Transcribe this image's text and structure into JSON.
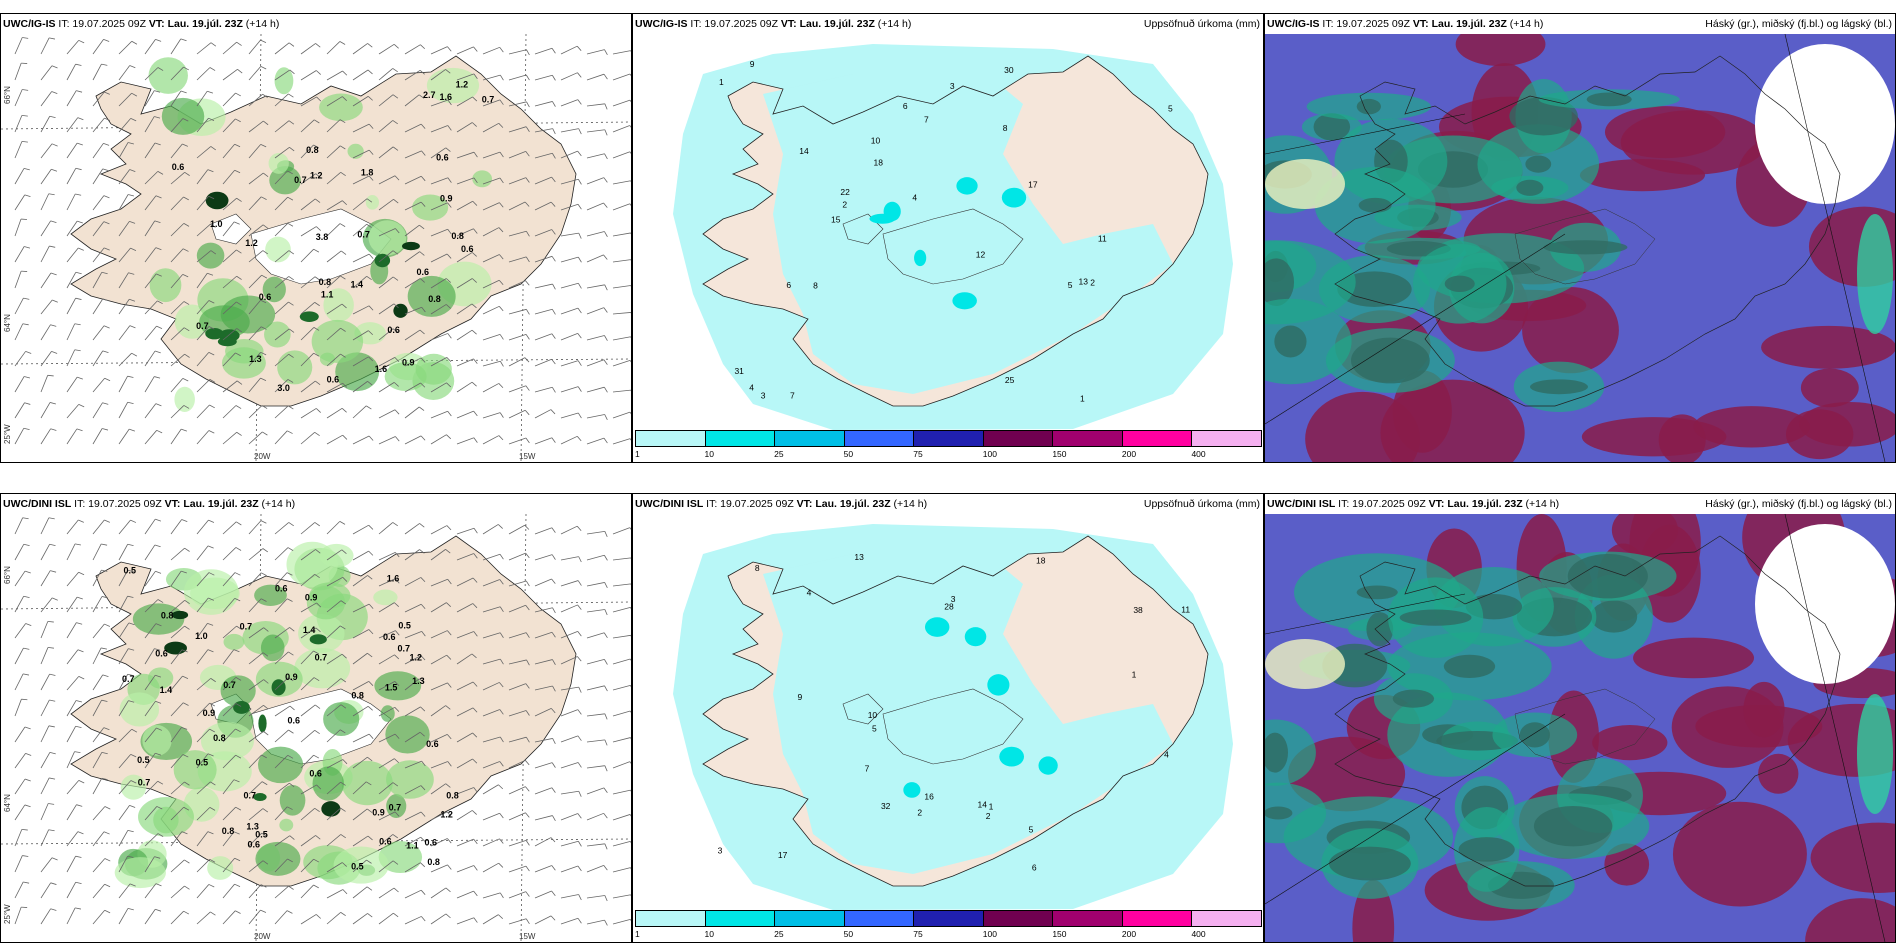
{
  "rows": [
    {
      "model": "UWC/IG-IS",
      "it_text": "IT: 19.07.2025 09Z",
      "vt_text": "VT: Lau. 19.júl. 23Z",
      "lead_text": "(+14 h)"
    },
    {
      "model": "UWC/DINI ISL",
      "it_text": "IT: 19.07.2025 09Z",
      "vt_text": "VT: Lau. 19.júl. 23Z",
      "lead_text": "(+14 h)"
    }
  ],
  "titles": {
    "precip": "Uppsöfnuð úrkoma (mm)",
    "cloud": "Háský (gr.), miðský (fj.bl.) og lágský (bl.)"
  },
  "axis_labels": {
    "lat66": "66°N",
    "lat64": "64°N",
    "lon25": "25°W",
    "lon20": "20W",
    "lon15": "15W"
  },
  "colorbar": {
    "colors": [
      "#b8f7f7",
      "#00e6e6",
      "#00bfe6",
      "#3366ff",
      "#2020b0",
      "#700050",
      "#a0006e",
      "#ff00a0",
      "#f5b0f0"
    ],
    "ticks": [
      "1",
      "10",
      "25",
      "50",
      "75",
      "100",
      "150",
      "200",
      "400"
    ]
  },
  "wind_panel_labels": [
    [
      "1.1",
      "1.6",
      "3.0",
      "0.6",
      "0.8",
      "0.9",
      "0.8",
      "0.6",
      "0.7",
      "0.9",
      "0.8",
      "3.8",
      "2.7",
      "1.4",
      "1.3",
      "0.7",
      "0.6",
      "0.6",
      "1.2",
      "1.0",
      "0.6",
      "0.7",
      "1.2",
      "1.8",
      "1.6",
      "0.6",
      "0.8",
      "0.7",
      "0.6",
      "1.2"
    ],
    [
      "0.7",
      "1.0",
      "0.8",
      "0.9",
      "0.5",
      "0.8",
      "1.2",
      "1.1",
      "1.4",
      "0.6",
      "0.7",
      "0.5",
      "0.9",
      "1.5",
      "1.3",
      "0.7",
      "0.7",
      "0.9",
      "0.5",
      "0.8",
      "0.6",
      "1.3",
      "0.6",
      "0.7",
      "0.6",
      "0.5",
      "0.6",
      "1.6",
      "0.7",
      "0.8",
      "0.6",
      "0.7",
      "0.8",
      "0.9",
      "0.6",
      "0.5",
      "0.8",
      "0.7",
      "0.6",
      "1.2",
      "1.4",
      "0.6",
      "0.5"
    ]
  ],
  "precip_panel_labels": [
    [
      "1",
      "2",
      "4",
      "5",
      "8",
      "6",
      "7",
      "3",
      "12",
      "18",
      "22",
      "30",
      "25",
      "15",
      "17",
      "10",
      "13",
      "31",
      "11",
      "14",
      "9",
      "6",
      "2",
      "3",
      "4",
      "5",
      "7",
      "8",
      "1"
    ],
    [
      "3",
      "4",
      "5",
      "9",
      "10",
      "18",
      "14",
      "16",
      "17",
      "28",
      "38",
      "32",
      "13",
      "11",
      "6",
      "7",
      "8",
      "2",
      "1",
      "3",
      "4",
      "5",
      "2",
      "1"
    ]
  ]
}
